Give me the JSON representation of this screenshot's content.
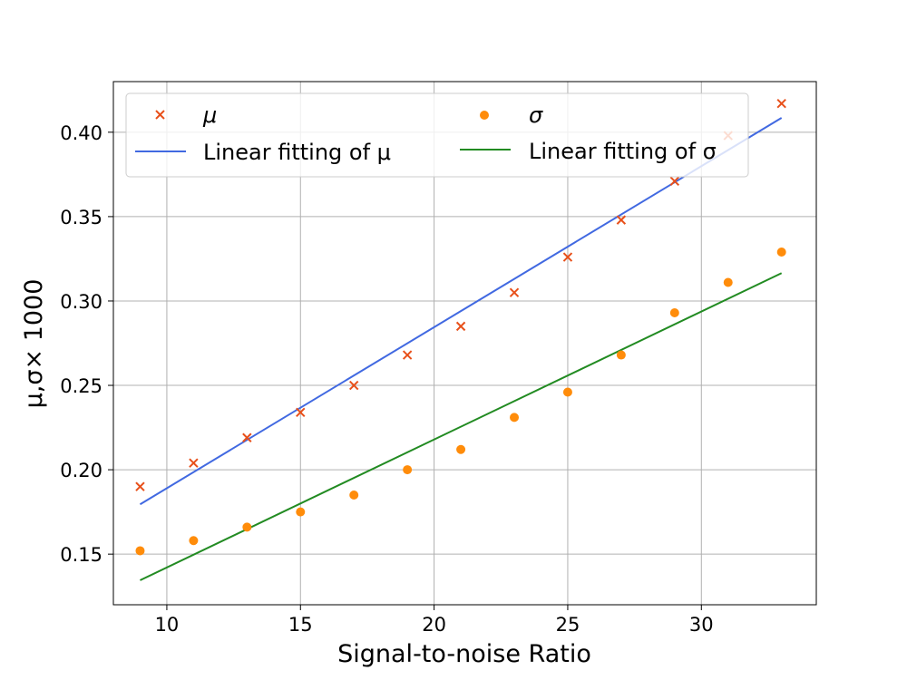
{
  "chart_data": {
    "type": "scatter",
    "title": "",
    "xlabel": "Signal-to-noise Ratio",
    "ylabel": "μ,σ× 1000",
    "xlim": [
      8,
      34.3
    ],
    "ylim": [
      0.12,
      0.43
    ],
    "x_ticks": [
      10,
      15,
      20,
      25,
      30
    ],
    "y_ticks": [
      0.15,
      0.2,
      0.25,
      0.3,
      0.35,
      0.4
    ],
    "x_tick_labels": [
      "10",
      "15",
      "20",
      "25",
      "30"
    ],
    "y_tick_labels": [
      "0.15",
      "0.20",
      "0.25",
      "0.30",
      "0.35",
      "0.40"
    ],
    "grid": true,
    "legend_position": "top",
    "x": [
      9,
      11,
      13,
      15,
      17,
      19,
      21,
      23,
      25,
      27,
      29,
      31,
      33
    ],
    "series": [
      {
        "name": "μ",
        "kind": "scatter",
        "marker": "x",
        "color": "#e8501a",
        "values": [
          0.19,
          0.204,
          0.219,
          0.234,
          0.25,
          0.268,
          0.285,
          0.305,
          0.326,
          0.348,
          0.371,
          0.398,
          0.417
        ]
      },
      {
        "name": "σ",
        "kind": "scatter",
        "marker": "o",
        "color": "#ff8c0a",
        "values": [
          0.152,
          0.158,
          0.166,
          0.175,
          0.185,
          0.2,
          0.212,
          0.231,
          0.246,
          0.268,
          0.293,
          0.311,
          0.329
        ]
      },
      {
        "name": "Linear fitting of μ",
        "kind": "line",
        "color": "#4169e1",
        "x": [
          9,
          33
        ],
        "values": [
          0.1795,
          0.4085
        ]
      },
      {
        "name": "Linear fitting of σ",
        "kind": "line",
        "color": "#228b22",
        "x": [
          9,
          33
        ],
        "values": [
          0.1345,
          0.3165
        ]
      }
    ]
  }
}
